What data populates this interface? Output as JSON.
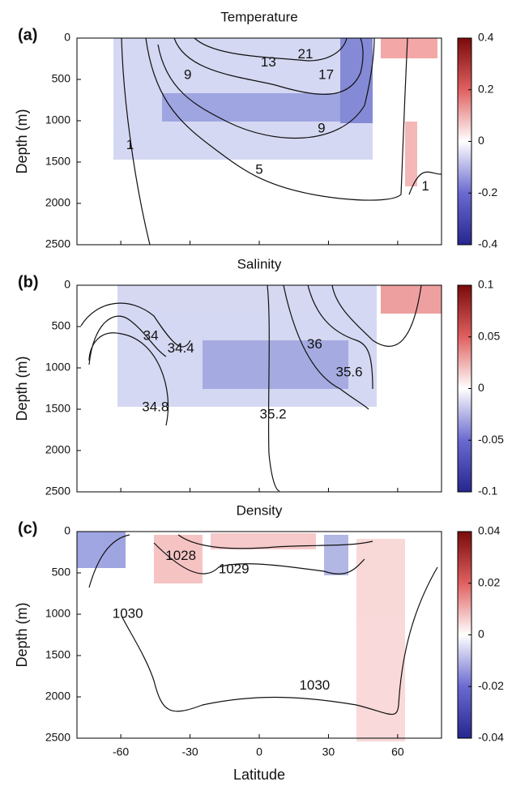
{
  "chart_data": [
    {
      "type": "heatmap",
      "title": "Temperature",
      "panel": "(a)",
      "ylabel": "Depth (m)",
      "xlim": [
        -79,
        79
      ],
      "xticks": [
        -60,
        -30,
        0,
        30,
        60
      ],
      "ylim": [
        2500,
        0
      ],
      "yticks": [
        0,
        500,
        1000,
        1500,
        2000,
        2500
      ],
      "clim": [
        -0.4,
        0.4
      ],
      "cticks": [
        0.4,
        0.2,
        0,
        -0.2,
        -0.4
      ],
      "annotations": [
        {
          "text": "21",
          "x": 20,
          "y": 200
        },
        {
          "text": "13",
          "x": 4,
          "y": 300
        },
        {
          "text": "17",
          "x": 29,
          "y": 450
        },
        {
          "text": "9",
          "x": -31,
          "y": 450
        },
        {
          "text": "9",
          "x": 27,
          "y": 1100
        },
        {
          "text": "5",
          "x": 0,
          "y": 1600
        },
        {
          "text": "1",
          "x": -56,
          "y": 1300
        },
        {
          "text": "1",
          "x": 72,
          "y": 1800
        }
      ]
    },
    {
      "type": "heatmap",
      "title": "Salinity",
      "panel": "(b)",
      "ylabel": "Depth (m)",
      "xlim": [
        -79,
        79
      ],
      "xticks": [
        -60,
        -30,
        0,
        30,
        60
      ],
      "ylim": [
        2500,
        0
      ],
      "yticks": [
        0,
        500,
        1000,
        1500,
        2000,
        2500
      ],
      "clim": [
        -0.1,
        0.1
      ],
      "cticks": [
        0.1,
        0.05,
        0,
        -0.05,
        -0.1
      ],
      "annotations": [
        {
          "text": "34",
          "x": -47,
          "y": 620
        },
        {
          "text": "34.4",
          "x": -34,
          "y": 770
        },
        {
          "text": "36",
          "x": 24,
          "y": 720
        },
        {
          "text": "35.6",
          "x": 39,
          "y": 1060
        },
        {
          "text": "34.8",
          "x": -45,
          "y": 1480
        },
        {
          "text": "35.2",
          "x": 6,
          "y": 1570
        }
      ]
    },
    {
      "type": "heatmap",
      "title": "Density",
      "panel": "(c)",
      "ylabel": "Depth (m)",
      "xlabel": "Latitude",
      "xlim": [
        -79,
        79
      ],
      "xticks": [
        -60,
        -30,
        0,
        30,
        60
      ],
      "ylim": [
        2500,
        0
      ],
      "yticks": [
        0,
        500,
        1000,
        1500,
        2000,
        2500
      ],
      "clim": [
        -0.04,
        0.04
      ],
      "cticks": [
        0.04,
        0.02,
        0,
        -0.02,
        -0.04
      ],
      "annotations": [
        {
          "text": "1028",
          "x": -34,
          "y": 300
        },
        {
          "text": "1029",
          "x": -11,
          "y": 460
        },
        {
          "text": "1030",
          "x": -57,
          "y": 1000
        },
        {
          "text": "1030",
          "x": 24,
          "y": 1870
        }
      ]
    }
  ]
}
